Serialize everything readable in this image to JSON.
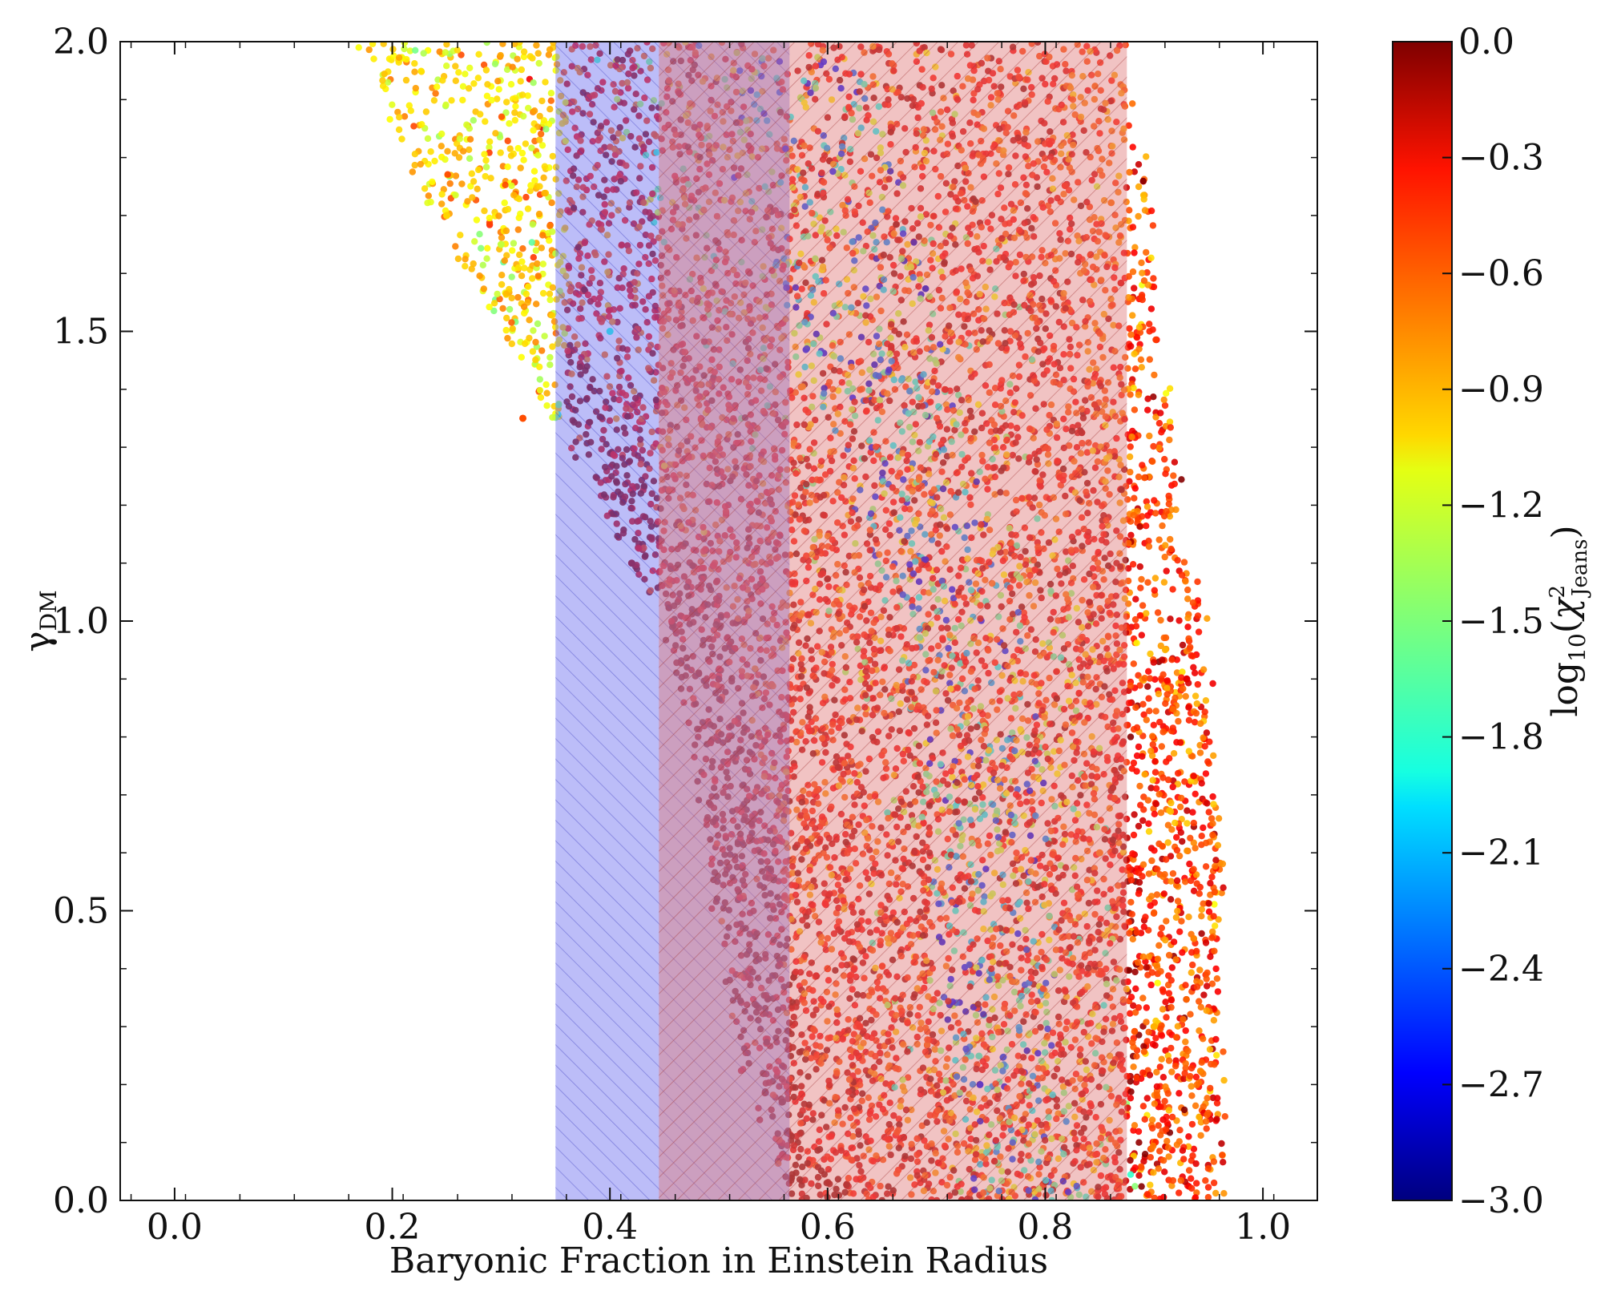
{
  "chart_data": {
    "type": "scatter",
    "title": "",
    "xlabel": "Baryonic Fraction in Einstein Radius",
    "ylabel_base": "γ",
    "ylabel_sub": "DM",
    "xlim": [
      -0.05,
      1.05
    ],
    "ylim": [
      0.0,
      2.0
    ],
    "x_ticks": [
      0.0,
      0.2,
      0.4,
      0.6,
      0.8,
      1.0
    ],
    "x_tick_labels": [
      "0.0",
      "0.2",
      "0.4",
      "0.6",
      "0.8",
      "1.0"
    ],
    "y_ticks": [
      0.0,
      0.5,
      1.0,
      1.5,
      2.0
    ],
    "y_tick_labels": [
      "0.0",
      "0.5",
      "1.0",
      "1.5",
      "2.0"
    ],
    "grid": false,
    "colorbar": {
      "label_prefix": "log",
      "label_sub": "10",
      "label_chi": "χ",
      "label_sup": "2",
      "label_chi_sub": "Jeans",
      "range": [
        -3.0,
        0.0
      ],
      "colormap": "jet",
      "ticks": [
        0.0,
        -0.3,
        -0.6,
        -0.9,
        -1.2,
        -1.5,
        -1.8,
        -2.1,
        -2.4,
        -2.7,
        -3.0
      ],
      "tick_labels": [
        "0.0",
        "−0.3",
        "−0.6",
        "−0.9",
        "−1.2",
        "−1.5",
        "−1.8",
        "−2.1",
        "−2.4",
        "−2.7",
        "−3.0"
      ]
    },
    "shaded_bands": [
      {
        "xmin": 0.35,
        "xmax": 0.565,
        "color": "#6a6cf0",
        "hatch": "backslash"
      },
      {
        "xmin": 0.445,
        "xmax": 0.875,
        "color": "#e07a7a",
        "hatch": "slash"
      }
    ],
    "scatter_envelope": {
      "y_samples": [
        0.0,
        0.25,
        0.5,
        0.75,
        1.0,
        1.25,
        1.5,
        1.75,
        2.0
      ],
      "left_edge_x": [
        0.565,
        0.52,
        0.5,
        0.48,
        0.45,
        0.38,
        0.3,
        0.22,
        0.17
      ],
      "right_edge_x": [
        0.965,
        0.96,
        0.96,
        0.955,
        0.945,
        0.92,
        0.905,
        0.895,
        0.87
      ]
    },
    "point_samples": [
      {
        "x": 0.25,
        "y": 1.7,
        "v": -1.0
      },
      {
        "x": 0.3,
        "y": 1.65,
        "v": -1.3
      },
      {
        "x": 0.32,
        "y": 1.35,
        "v": -0.6
      },
      {
        "x": 0.4,
        "y": 1.5,
        "v": -1.8
      },
      {
        "x": 0.42,
        "y": 1.1,
        "v": -0.1
      },
      {
        "x": 0.5,
        "y": 0.9,
        "v": -0.1
      },
      {
        "x": 0.6,
        "y": 0.4,
        "v": -0.5
      },
      {
        "x": 0.7,
        "y": 0.7,
        "v": -1.6
      },
      {
        "x": 0.74,
        "y": 0.2,
        "v": -2.6
      },
      {
        "x": 0.8,
        "y": 1.3,
        "v": -0.5
      },
      {
        "x": 0.85,
        "y": 0.6,
        "v": -0.7
      },
      {
        "x": 0.9,
        "y": 0.3,
        "v": -0.9
      },
      {
        "x": 0.93,
        "y": 0.9,
        "v": -0.3
      }
    ]
  }
}
